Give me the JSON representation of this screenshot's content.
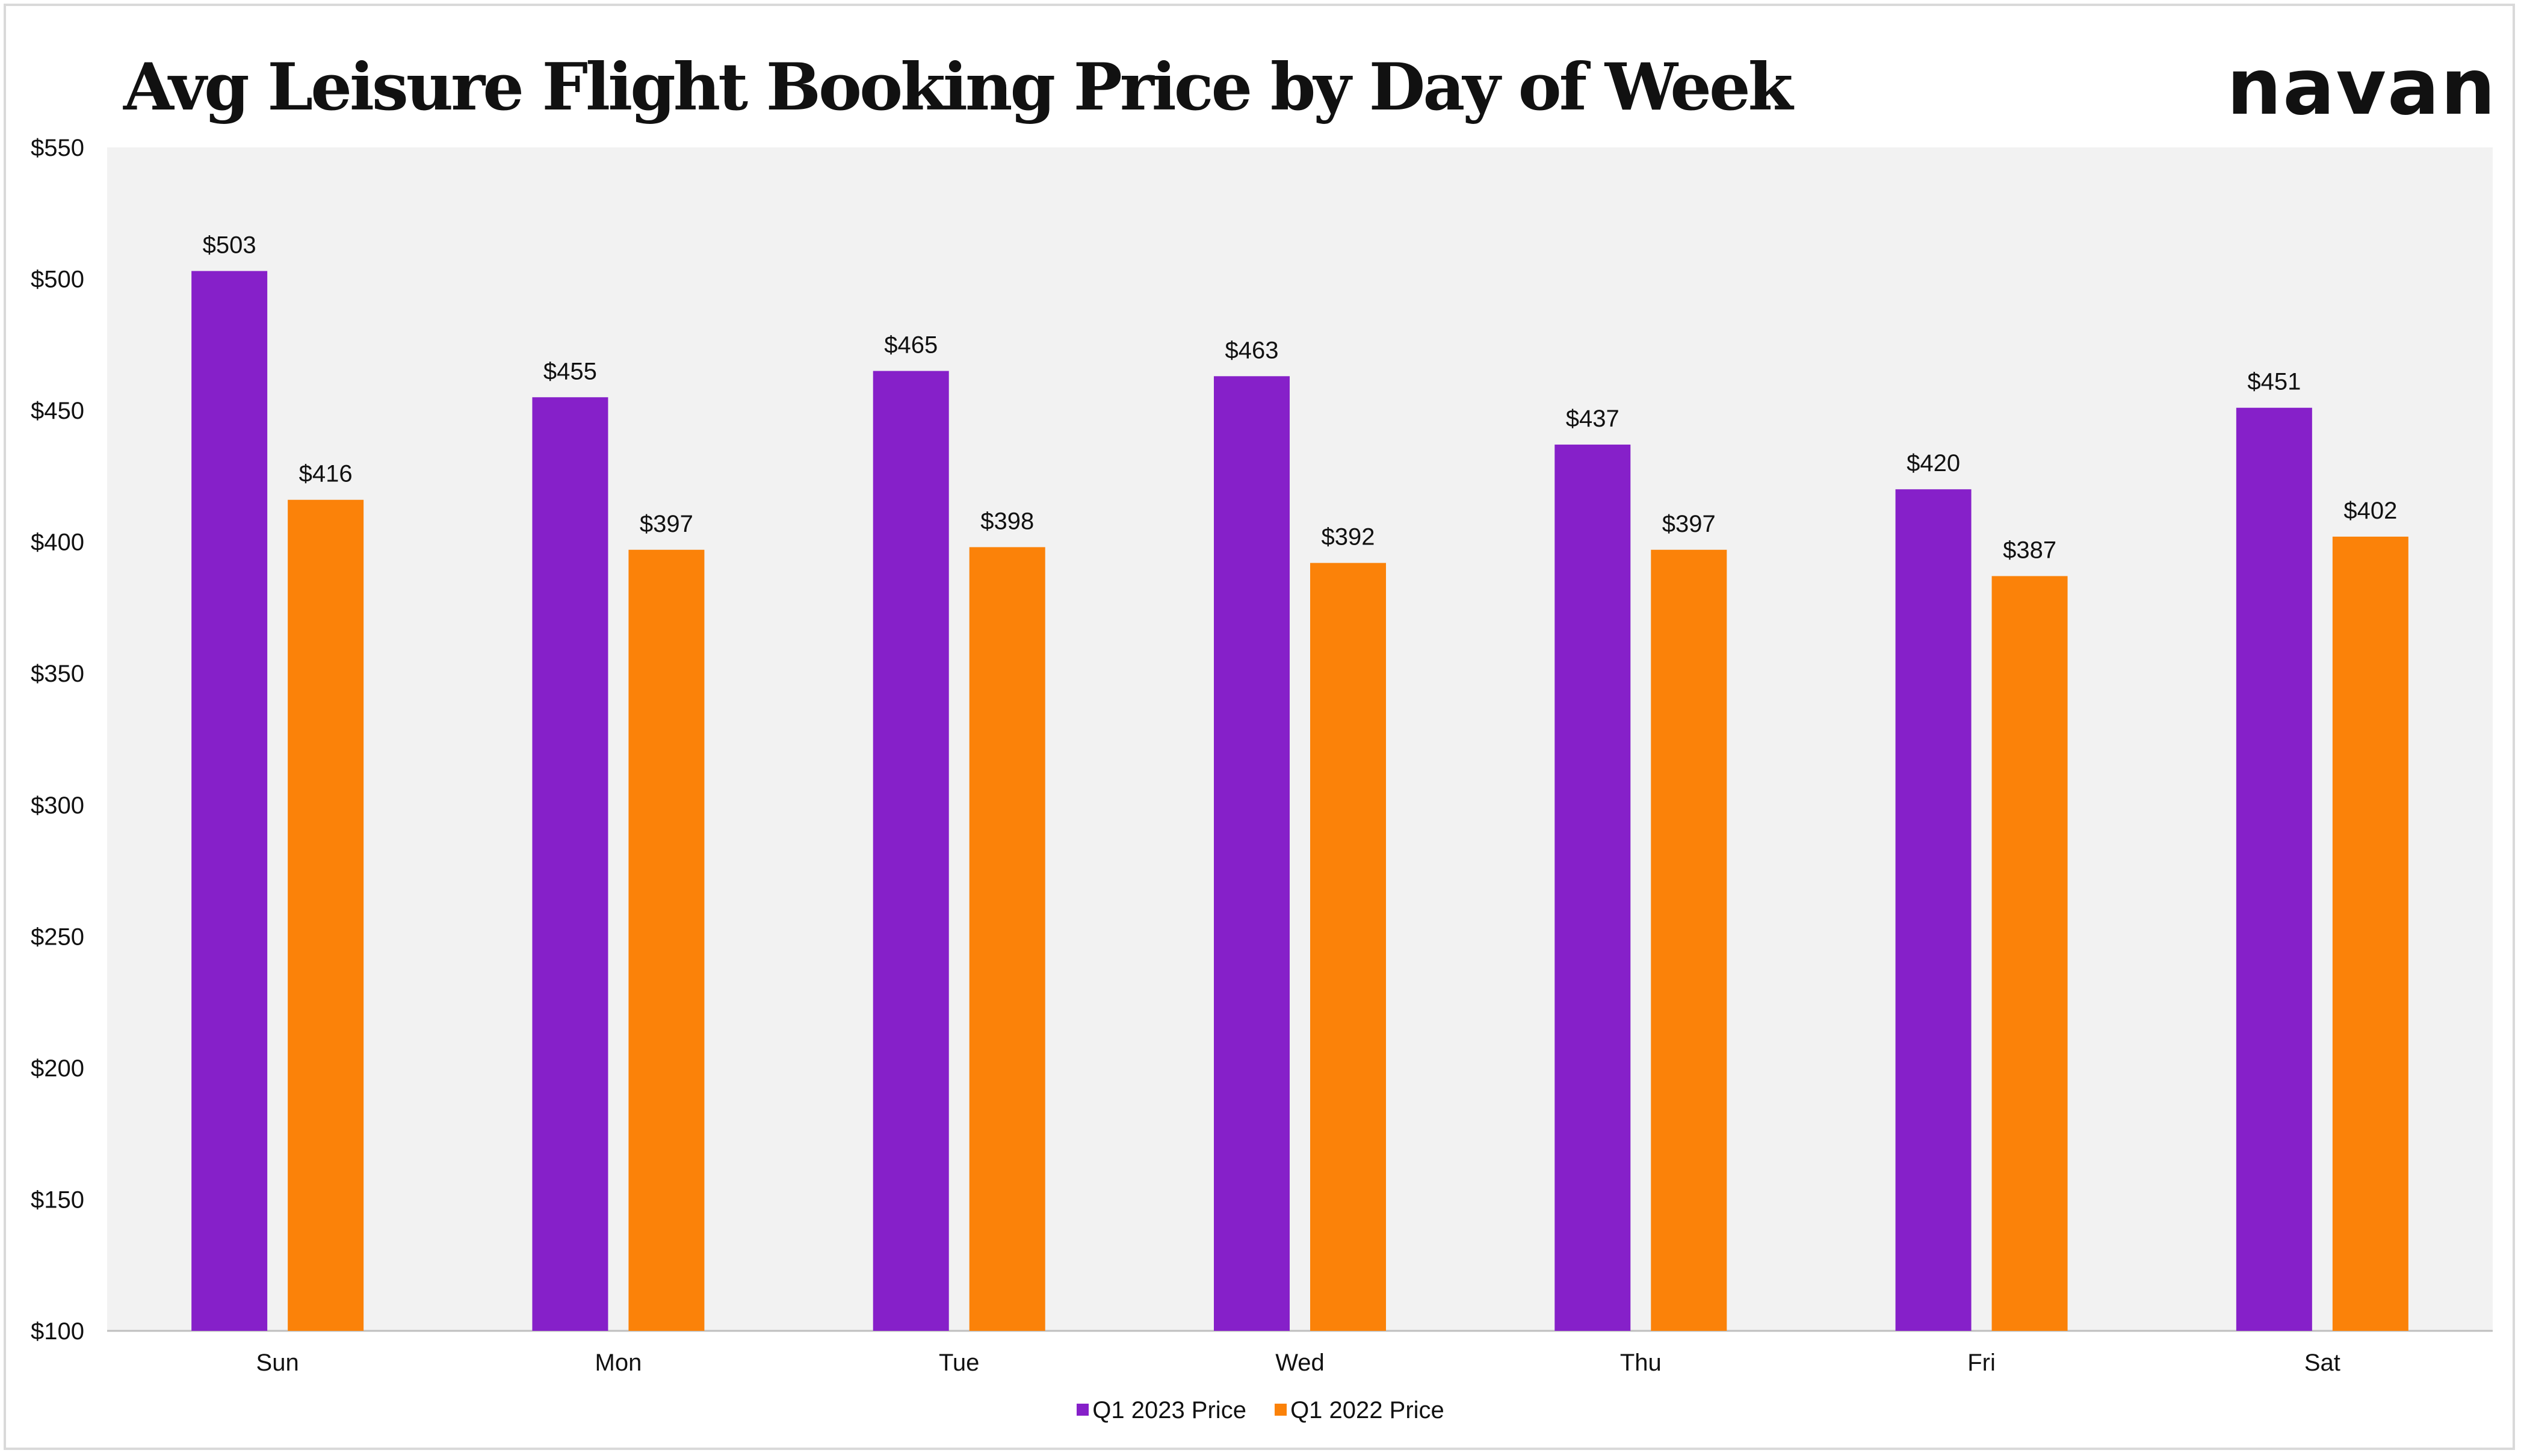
{
  "brand": {
    "logo_text": "navan"
  },
  "chart_data": {
    "type": "bar",
    "title": "Avg Leisure Flight Booking Price by Day of Week",
    "xlabel": "",
    "ylabel": "",
    "categories": [
      "Sun",
      "Mon",
      "Tue",
      "Wed",
      "Thu",
      "Fri",
      "Sat"
    ],
    "series": [
      {
        "name": "Q1 2023 Price",
        "color": "#8620c9",
        "values": [
          503,
          455,
          465,
          463,
          437,
          420,
          451
        ],
        "labels": [
          "$503",
          "$455",
          "$465",
          "$463",
          "$437",
          "$420",
          "$451"
        ]
      },
      {
        "name": "Q1 2022 Price",
        "color": "#fb8209",
        "values": [
          416,
          397,
          398,
          392,
          397,
          387,
          402
        ],
        "labels": [
          "$416",
          "$397",
          "$398",
          "$392",
          "$397",
          "$387",
          "$402"
        ]
      }
    ],
    "ylim": [
      100,
      550
    ],
    "yticks": [
      100,
      150,
      200,
      250,
      300,
      350,
      400,
      450,
      500,
      550
    ],
    "ytick_labels": [
      "$100",
      "$150",
      "$200",
      "$250",
      "$300",
      "$350",
      "$400",
      "$450",
      "$500",
      "$550"
    ],
    "plot_background": "#f2f2f2",
    "grid": false,
    "legend_position": "bottom"
  }
}
